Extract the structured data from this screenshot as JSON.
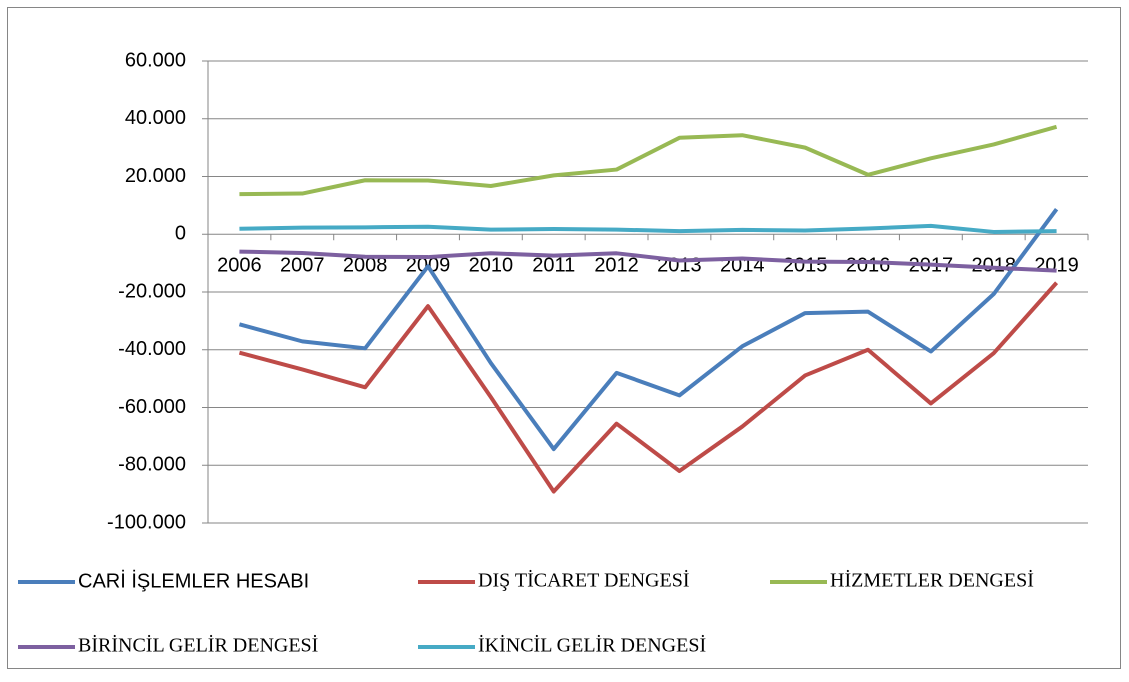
{
  "chart_data": {
    "type": "line",
    "categories": [
      "2006",
      "2007",
      "2008",
      "2009",
      "2010",
      "2011",
      "2012",
      "2013",
      "2014",
      "2015",
      "2016",
      "2017",
      "2018",
      "2019"
    ],
    "series": [
      {
        "name": "CARİ İŞLEMLER HESABI",
        "color": "#4a7ebb",
        "values": [
          -31200,
          -37100,
          -39500,
          -11100,
          -44600,
          -74400,
          -48000,
          -55800,
          -38800,
          -27300,
          -26800,
          -40600,
          -20700,
          8700
        ]
      },
      {
        "name": "DIŞ TİCARET DENGESİ",
        "color": "#be4b48",
        "values": [
          -41000,
          -46800,
          -53000,
          -24900,
          -56400,
          -89100,
          -65600,
          -82000,
          -66600,
          -48900,
          -40000,
          -58600,
          -41200,
          -16800
        ]
      },
      {
        "name": "HİZMETLER DENGESİ",
        "color": "#98b954",
        "values": [
          13900,
          14100,
          18700,
          18600,
          16700,
          20400,
          22400,
          33400,
          34300,
          30000,
          20600,
          26300,
          31100,
          37200
        ]
      },
      {
        "name": "BİRİNCİL GELİR DENGESİ",
        "color": "#7d60a0",
        "values": [
          -6000,
          -6500,
          -7800,
          -7900,
          -6600,
          -7400,
          -6600,
          -9100,
          -8400,
          -9500,
          -9600,
          -10500,
          -11600,
          -12600
        ]
      },
      {
        "name": "İKİNCİL GELİR DENGESİ",
        "color": "#46aac5",
        "values": [
          1900,
          2300,
          2400,
          2600,
          1600,
          1800,
          1600,
          1100,
          1500,
          1300,
          2000,
          2900,
          800,
          1100
        ]
      }
    ],
    "ylim": [
      -100000,
      60000
    ],
    "yticks": [
      {
        "value": -100000,
        "label": "-100.000"
      },
      {
        "value": -80000,
        "label": "-80.000"
      },
      {
        "value": -60000,
        "label": "-60.000"
      },
      {
        "value": -40000,
        "label": "-40.000"
      },
      {
        "value": -20000,
        "label": "-20.000"
      },
      0,
      {
        "value": 20000,
        "label": "20.000"
      },
      {
        "value": 40000,
        "label": "40.000"
      },
      {
        "value": 60000,
        "label": "60.000"
      }
    ],
    "grid": true
  }
}
